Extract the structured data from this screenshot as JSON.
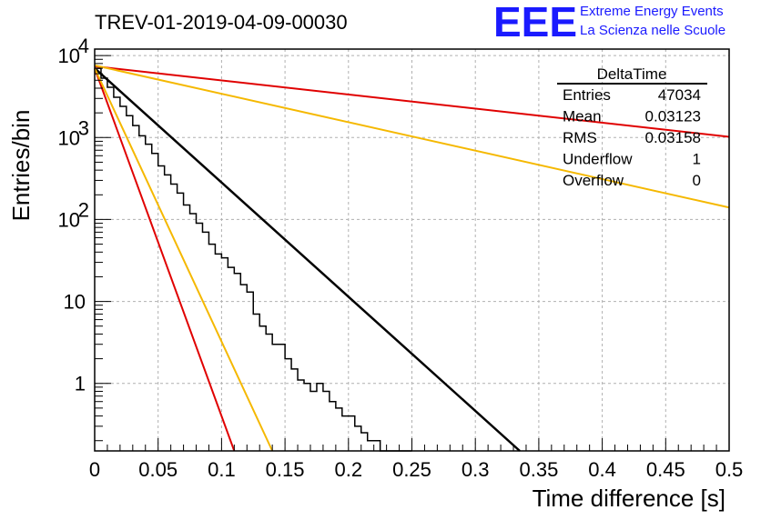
{
  "chart_data": {
    "type": "histogram",
    "title": "TREV-01-2019-04-09-00030",
    "xlabel": "Time difference [s]",
    "ylabel": "Entries/bin",
    "xlim": [
      0,
      0.5
    ],
    "ylim": [
      0.15,
      12000
    ],
    "yscale": "log",
    "grid": true,
    "x_ticks": [
      0,
      0.05,
      0.1,
      0.15,
      0.2,
      0.25,
      0.3,
      0.35,
      0.4,
      0.45,
      0.5
    ],
    "x_tick_labels": [
      "0",
      "0.05",
      "0.1",
      "0.15",
      "0.2",
      "0.25",
      "0.3",
      "0.35",
      "0.4",
      "0.45",
      "0.5"
    ],
    "y_ticks": [
      1,
      10,
      100,
      1000,
      10000
    ],
    "y_tick_labels": [
      "1",
      "10",
      "10^2",
      "10^3",
      "10^4"
    ],
    "histogram": {
      "name": "DeltaTime",
      "color": "#000000",
      "bin_width": 0.005,
      "counts": [
        7000,
        5300,
        4100,
        3100,
        2400,
        1850,
        1400,
        1050,
        830,
        640,
        450,
        350,
        270,
        210,
        150,
        118,
        90,
        70,
        50,
        38,
        34,
        26,
        22,
        16,
        13,
        7,
        5,
        4,
        3,
        3,
        2,
        1.5,
        1.1,
        1,
        0.8,
        1,
        0.8,
        0.6,
        0.5,
        0.4,
        0.4,
        0.3,
        0.25,
        0.2,
        0.2,
        0.15,
        0.1,
        0.1,
        0.1,
        0.1
      ]
    },
    "lines": [
      {
        "color": "#000000",
        "x": [
          0,
          0.335
        ],
        "y": [
          7000,
          0.15
        ]
      },
      {
        "color": "#e00000",
        "x": [
          0,
          0.5
        ],
        "y": [
          7400,
          1020
        ]
      },
      {
        "color": "#f5b800",
        "x": [
          0,
          0.5
        ],
        "y": [
          7600,
          140
        ]
      },
      {
        "color": "#e00000",
        "x": [
          0,
          0.11
        ],
        "y": [
          7000,
          0.15
        ]
      },
      {
        "color": "#f5b800",
        "x": [
          0,
          0.14
        ],
        "y": [
          7000,
          0.15
        ]
      }
    ],
    "stats_box": {
      "title": "DeltaTime",
      "rows": [
        {
          "label": "Entries",
          "value": "47034"
        },
        {
          "label": "Mean",
          "value": "0.03123"
        },
        {
          "label": "RMS",
          "value": "0.03158"
        },
        {
          "label": "Underflow",
          "value": "1"
        },
        {
          "label": "Overflow",
          "value": "0"
        }
      ]
    }
  },
  "branding": {
    "logo": "EEE",
    "line1": "Extreme Energy Events",
    "line2": "La Scienza nelle Scuole"
  }
}
